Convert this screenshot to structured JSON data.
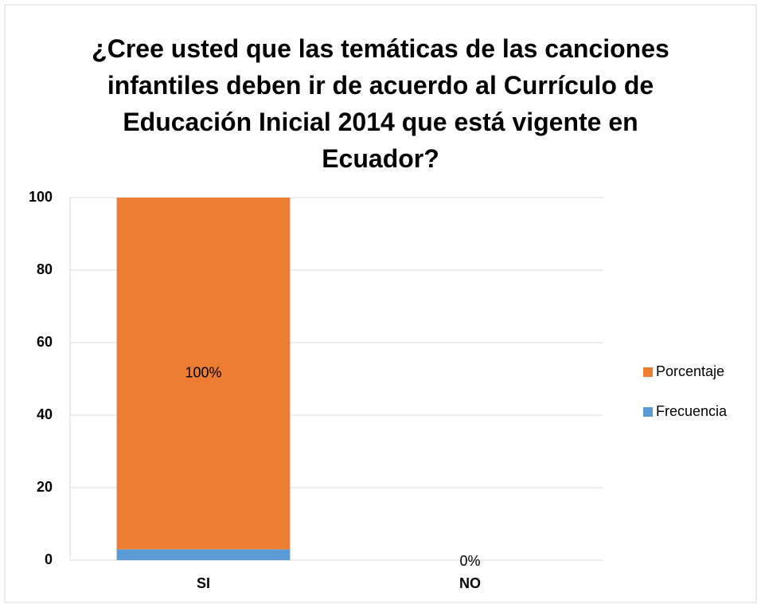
{
  "chart_data": {
    "type": "stacked_bar",
    "title": "¿Cree usted que las temáticas de las canciones infantiles deben ir de acuerdo al Currículo de Educación Inicial 2014 que está vigente en Ecuador?",
    "categories": [
      "SI",
      "NO"
    ],
    "series": [
      {
        "name": "Frecuencia",
        "color": "#5b9bd5",
        "values": [
          3,
          0
        ]
      },
      {
        "name": "Porcentaje",
        "color": "#ed7d31",
        "values": [
          100,
          0
        ],
        "value_labels": [
          "100%",
          "0%"
        ]
      }
    ],
    "ylim": [
      0,
      100
    ],
    "yticks": [
      0,
      20,
      40,
      60,
      80,
      100
    ],
    "grid": true,
    "legend": "right"
  }
}
